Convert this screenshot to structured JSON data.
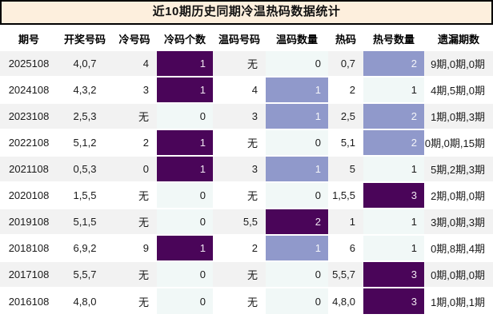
{
  "title": "近10期历史同期冷温热码数据统计",
  "heat_colors": {
    "light": "#f1f8f7",
    "mid": "#9099cb",
    "dark": "#4a0559"
  },
  "zebra": {
    "odd_row_bg": "#f2f2f2",
    "even_row_bg": "#ffffff",
    "title_bg": "#fdefdd"
  },
  "columns": [
    "期号",
    "开奖号码",
    "冷号码",
    "冷码个数",
    "温码号码",
    "温码数量",
    "热码",
    "热号数量",
    "遗漏期数"
  ],
  "rows": [
    {
      "period": "2025108",
      "draw_numbers": "4,0,7",
      "cold_numbers": "4",
      "cold_count": "1",
      "cold_level": "dark",
      "warm_numbers": "无",
      "warm_count": "0",
      "warm_level": "light",
      "hot_numbers": "0,7",
      "hot_count": "2",
      "hot_level": "mid",
      "omission": "9期,0期,0期"
    },
    {
      "period": "2024108",
      "draw_numbers": "4,3,2",
      "cold_numbers": "3",
      "cold_count": "1",
      "cold_level": "dark",
      "warm_numbers": "4",
      "warm_count": "1",
      "warm_level": "mid",
      "hot_numbers": "2",
      "hot_count": "1",
      "hot_level": "light",
      "omission": "4期,5期,0期"
    },
    {
      "period": "2023108",
      "draw_numbers": "2,5,3",
      "cold_numbers": "无",
      "cold_count": "0",
      "cold_level": "light",
      "warm_numbers": "3",
      "warm_count": "1",
      "warm_level": "mid",
      "hot_numbers": "2,5",
      "hot_count": "2",
      "hot_level": "mid",
      "omission": "1期,0期,3期"
    },
    {
      "period": "2022108",
      "draw_numbers": "5,1,2",
      "cold_numbers": "2",
      "cold_count": "1",
      "cold_level": "dark",
      "warm_numbers": "无",
      "warm_count": "0",
      "warm_level": "light",
      "hot_numbers": "5,1",
      "hot_count": "2",
      "hot_level": "mid",
      "omission": "0期,0期,15期"
    },
    {
      "period": "2021108",
      "draw_numbers": "0,5,3",
      "cold_numbers": "0",
      "cold_count": "1",
      "cold_level": "dark",
      "warm_numbers": "3",
      "warm_count": "1",
      "warm_level": "mid",
      "hot_numbers": "5",
      "hot_count": "1",
      "hot_level": "light",
      "omission": "5期,2期,3期"
    },
    {
      "period": "2020108",
      "draw_numbers": "1,5,5",
      "cold_numbers": "无",
      "cold_count": "0",
      "cold_level": "light",
      "warm_numbers": "无",
      "warm_count": "0",
      "warm_level": "light",
      "hot_numbers": "1,5,5",
      "hot_count": "3",
      "hot_level": "dark",
      "omission": "2期,0期,0期"
    },
    {
      "period": "2019108",
      "draw_numbers": "5,1,5",
      "cold_numbers": "无",
      "cold_count": "0",
      "cold_level": "light",
      "warm_numbers": "5,5",
      "warm_count": "2",
      "warm_level": "dark",
      "hot_numbers": "1",
      "hot_count": "1",
      "hot_level": "light",
      "omission": "3期,0期,3期"
    },
    {
      "period": "2018108",
      "draw_numbers": "6,9,2",
      "cold_numbers": "9",
      "cold_count": "1",
      "cold_level": "dark",
      "warm_numbers": "2",
      "warm_count": "1",
      "warm_level": "mid",
      "hot_numbers": "6",
      "hot_count": "1",
      "hot_level": "light",
      "omission": "0期,8期,4期"
    },
    {
      "period": "2017108",
      "draw_numbers": "5,5,7",
      "cold_numbers": "无",
      "cold_count": "0",
      "cold_level": "light",
      "warm_numbers": "无",
      "warm_count": "0",
      "warm_level": "light",
      "hot_numbers": "5,5,7",
      "hot_count": "3",
      "hot_level": "dark",
      "omission": "0期,0期,0期"
    },
    {
      "period": "2016108",
      "draw_numbers": "4,8,0",
      "cold_numbers": "无",
      "cold_count": "0",
      "cold_level": "light",
      "warm_numbers": "无",
      "warm_count": "0",
      "warm_level": "light",
      "hot_numbers": "4,8,0",
      "hot_count": "3",
      "hot_level": "dark",
      "omission": "1期,0期,1期"
    }
  ]
}
